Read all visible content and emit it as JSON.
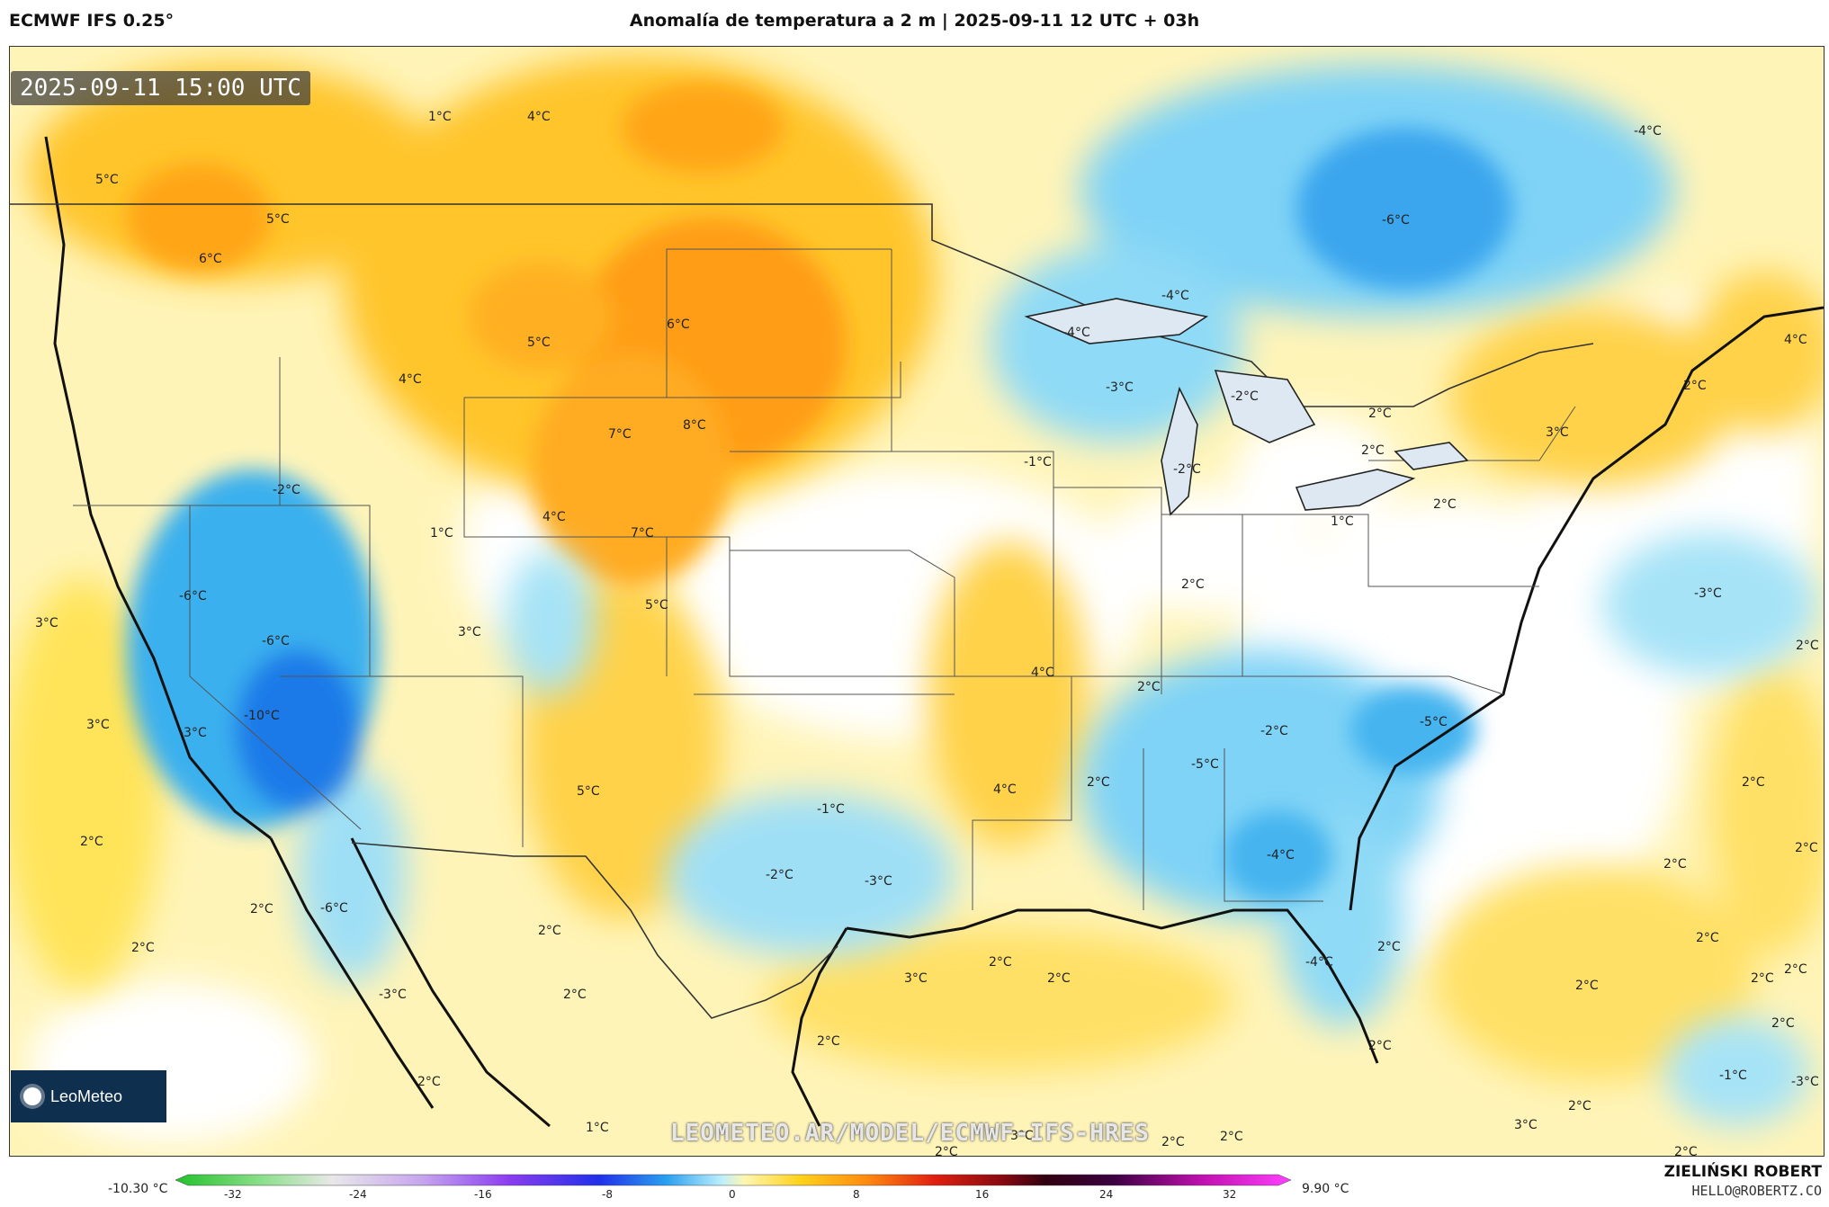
{
  "header": {
    "model": "ECMWF IFS 0.25°",
    "title": "Anomalía de temperatura a 2 m | 2025-09-11 12 UTC + 03h"
  },
  "valid_time": "2025-09-11 15:00 UTC",
  "logo": {
    "text": "LeoMeteo"
  },
  "watermark": "LEOMETEO.AR/MODEL/ECMWF-IFS-HRES",
  "colorbar": {
    "min_label": "-10.30 °C",
    "max_label": "9.90 °C",
    "ticks": [
      "-32",
      "-24",
      "-16",
      "-8",
      "0",
      "8",
      "16",
      "24",
      "32"
    ]
  },
  "credit": {
    "name": "ZIELIŃSKI ROBERT",
    "email": "HELLO@ROBERTZ.CO"
  },
  "map_labels": [
    {
      "t": "1°C"
    },
    {
      "t": "4°C"
    },
    {
      "t": "5°C"
    },
    {
      "t": "5°C"
    },
    {
      "t": "6°C"
    },
    {
      "t": "5°C"
    },
    {
      "t": "6°C"
    },
    {
      "t": "4°C"
    },
    {
      "t": "7°C"
    },
    {
      "t": "8°C"
    },
    {
      "t": "-2°C"
    },
    {
      "t": "4°C"
    },
    {
      "t": "7°C"
    },
    {
      "t": "1°C"
    },
    {
      "t": "5°C"
    },
    {
      "t": "3°C"
    },
    {
      "t": "-6°C"
    },
    {
      "t": "-6°C"
    },
    {
      "t": "3°C"
    },
    {
      "t": "3°C"
    },
    {
      "t": "-3°C"
    },
    {
      "t": "-10°C"
    },
    {
      "t": "2°C"
    },
    {
      "t": "2°C"
    },
    {
      "t": "-6°C"
    },
    {
      "t": "2°C"
    },
    {
      "t": "-3°C"
    },
    {
      "t": "2°C"
    },
    {
      "t": "5°C"
    },
    {
      "t": "2°C"
    },
    {
      "t": "2°C"
    },
    {
      "t": "1°C"
    },
    {
      "t": "-1°C"
    },
    {
      "t": "-2°C"
    },
    {
      "t": "-3°C"
    },
    {
      "t": "4°C"
    },
    {
      "t": "4°C"
    },
    {
      "t": "2°C"
    },
    {
      "t": "2°C"
    },
    {
      "t": "3°C"
    },
    {
      "t": "2°C"
    },
    {
      "t": "2°C"
    },
    {
      "t": "-4°C"
    },
    {
      "t": "-6°C"
    },
    {
      "t": "-4°C"
    },
    {
      "t": "-4°C"
    },
    {
      "t": "-3°C"
    },
    {
      "t": "-2°C"
    },
    {
      "t": "-1°C"
    },
    {
      "t": "-2°C"
    },
    {
      "t": "1°C"
    },
    {
      "t": "2°C"
    },
    {
      "t": "2°C"
    },
    {
      "t": "2°C"
    },
    {
      "t": "3°C"
    },
    {
      "t": "2°C"
    },
    {
      "t": "2°C"
    },
    {
      "t": "4°C"
    },
    {
      "t": "2°C"
    },
    {
      "t": "-3°C"
    },
    {
      "t": "-5°C"
    },
    {
      "t": "-2°C"
    },
    {
      "t": "-5°C"
    },
    {
      "t": "-4°C"
    },
    {
      "t": "-4°C"
    },
    {
      "t": "2°C"
    },
    {
      "t": "2°C"
    },
    {
      "t": "2°C"
    },
    {
      "t": "2°C"
    },
    {
      "t": "2°C"
    },
    {
      "t": "2°C"
    },
    {
      "t": "2°C"
    },
    {
      "t": "2°C"
    },
    {
      "t": "2°C"
    },
    {
      "t": "2°C"
    },
    {
      "t": "-1°C"
    },
    {
      "t": "-3°C"
    },
    {
      "t": "2°C"
    },
    {
      "t": "2°C"
    },
    {
      "t": "3°C"
    },
    {
      "t": "2°C"
    },
    {
      "t": "3°C"
    },
    {
      "t": "2°C"
    },
    {
      "t": "2°C"
    },
    {
      "t": "2°C"
    }
  ]
}
